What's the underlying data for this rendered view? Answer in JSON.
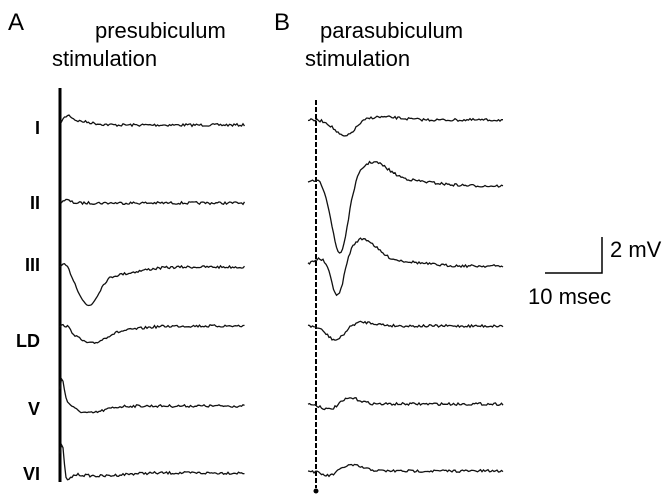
{
  "panels": [
    {
      "letter": "A",
      "region": "presubiculum",
      "method": "stimulation"
    },
    {
      "letter": "B",
      "region": "parasubiculum",
      "method": "stimulation"
    }
  ],
  "layers": [
    "I",
    "II",
    "III",
    "LD",
    "V",
    "VI"
  ],
  "scale_bar": {
    "vertical": "2 mV",
    "horizontal": "10 msec"
  }
}
